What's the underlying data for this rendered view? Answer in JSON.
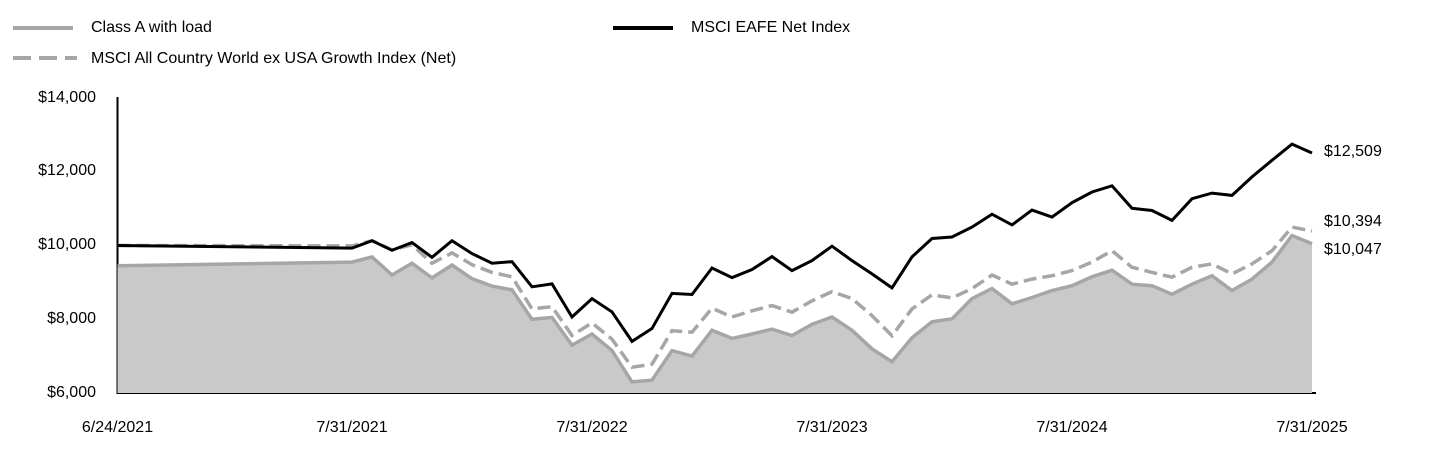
{
  "legend": {
    "items": [
      {
        "label": "Class A with load",
        "style": "solid-gray"
      },
      {
        "label": "MSCI All Country World ex USA Growth Index (Net)",
        "style": "dashed-gray"
      },
      {
        "label": "MSCI EAFE Net Index",
        "style": "solid-black"
      }
    ]
  },
  "colors": {
    "black_line": "#000000",
    "gray_line": "#a6a6a6",
    "area_fill": "#c9c9c9",
    "axis": "#000000",
    "text": "#000000"
  },
  "chart_data": {
    "type": "area",
    "title": "",
    "xlabel": "",
    "ylabel": "",
    "grid": false,
    "legend_position": "top-left",
    "ylim": [
      6000,
      14000
    ],
    "y_ticks": [
      {
        "value": 6000,
        "label": "$6,000"
      },
      {
        "value": 8000,
        "label": "$8,000"
      },
      {
        "value": 10000,
        "label": "$10,000"
      },
      {
        "value": 12000,
        "label": "$12,000"
      },
      {
        "value": 14000,
        "label": "$14,000"
      }
    ],
    "x_ticks": [
      "6/24/2021",
      "7/31/2021",
      "7/31/2022",
      "7/31/2023",
      "7/31/2024",
      "7/31/2025"
    ],
    "x_dates": [
      "6/24/2021",
      "7/31/2021",
      "8/31/2021",
      "9/30/2021",
      "10/31/2021",
      "11/30/2021",
      "12/31/2021",
      "1/31/2022",
      "2/28/2022",
      "3/31/2022",
      "4/30/2022",
      "5/31/2022",
      "6/30/2022",
      "7/31/2022",
      "8/31/2022",
      "9/30/2022",
      "10/31/2022",
      "11/30/2022",
      "12/31/2022",
      "1/31/2023",
      "2/28/2023",
      "3/31/2023",
      "4/30/2023",
      "5/31/2023",
      "6/30/2023",
      "7/31/2023",
      "8/31/2023",
      "9/30/2023",
      "10/31/2023",
      "11/30/2023",
      "12/31/2023",
      "1/31/2024",
      "2/29/2024",
      "3/31/2024",
      "4/30/2024",
      "5/31/2024",
      "6/30/2024",
      "7/31/2024",
      "8/31/2024",
      "9/30/2024",
      "10/31/2024",
      "11/30/2024",
      "12/31/2024",
      "1/31/2025",
      "2/28/2025",
      "3/31/2025",
      "4/30/2025",
      "5/31/2025",
      "6/30/2025",
      "7/31/2025"
    ],
    "series": [
      {
        "name": "Class A with load",
        "kind": "area",
        "color": "#a6a6a6",
        "fill": "#c9c9c9",
        "end_label": "$10,047",
        "values": [
          9450,
          9550,
          9690,
          9200,
          9520,
          9120,
          9470,
          9100,
          8900,
          8800,
          8000,
          8050,
          7300,
          7600,
          7150,
          6300,
          6350,
          7150,
          7000,
          7700,
          7480,
          7600,
          7730,
          7560,
          7860,
          8060,
          7700,
          7200,
          6850,
          7500,
          7930,
          8010,
          8560,
          8830,
          8420,
          8590,
          8780,
          8910,
          9150,
          9330,
          8950,
          8910,
          8680,
          8950,
          9180,
          8780,
          9090,
          9550,
          10270,
          10047
        ]
      },
      {
        "name": "MSCI All Country World ex USA Growth Index (Net)",
        "kind": "dashed-line",
        "color": "#a6a6a6",
        "end_label": "$10,394",
        "values": [
          10000,
          9990,
          10130,
          9880,
          10020,
          9520,
          9800,
          9480,
          9270,
          9150,
          8280,
          8340,
          7560,
          7900,
          7460,
          6700,
          6780,
          7690,
          7650,
          8300,
          8060,
          8230,
          8370,
          8190,
          8500,
          8750,
          8560,
          8100,
          7550,
          8280,
          8660,
          8580,
          8830,
          9200,
          8950,
          9090,
          9180,
          9320,
          9550,
          9860,
          9410,
          9270,
          9140,
          9410,
          9500,
          9230,
          9500,
          9860,
          10500,
          10394
        ]
      },
      {
        "name": "MSCI EAFE Net Index",
        "kind": "line",
        "color": "#000000",
        "end_label": "$12,509",
        "values": [
          10000,
          9930,
          10130,
          9870,
          10080,
          9680,
          10130,
          9780,
          9520,
          9560,
          8880,
          8960,
          8060,
          8560,
          8200,
          7400,
          7750,
          8700,
          8670,
          9390,
          9130,
          9350,
          9700,
          9320,
          9590,
          9980,
          9590,
          9230,
          8850,
          9690,
          10190,
          10230,
          10500,
          10850,
          10560,
          10960,
          10770,
          11160,
          11450,
          11620,
          11010,
          10950,
          10680,
          11270,
          11420,
          11360,
          11860,
          12310,
          12750,
          12509
        ]
      }
    ]
  }
}
